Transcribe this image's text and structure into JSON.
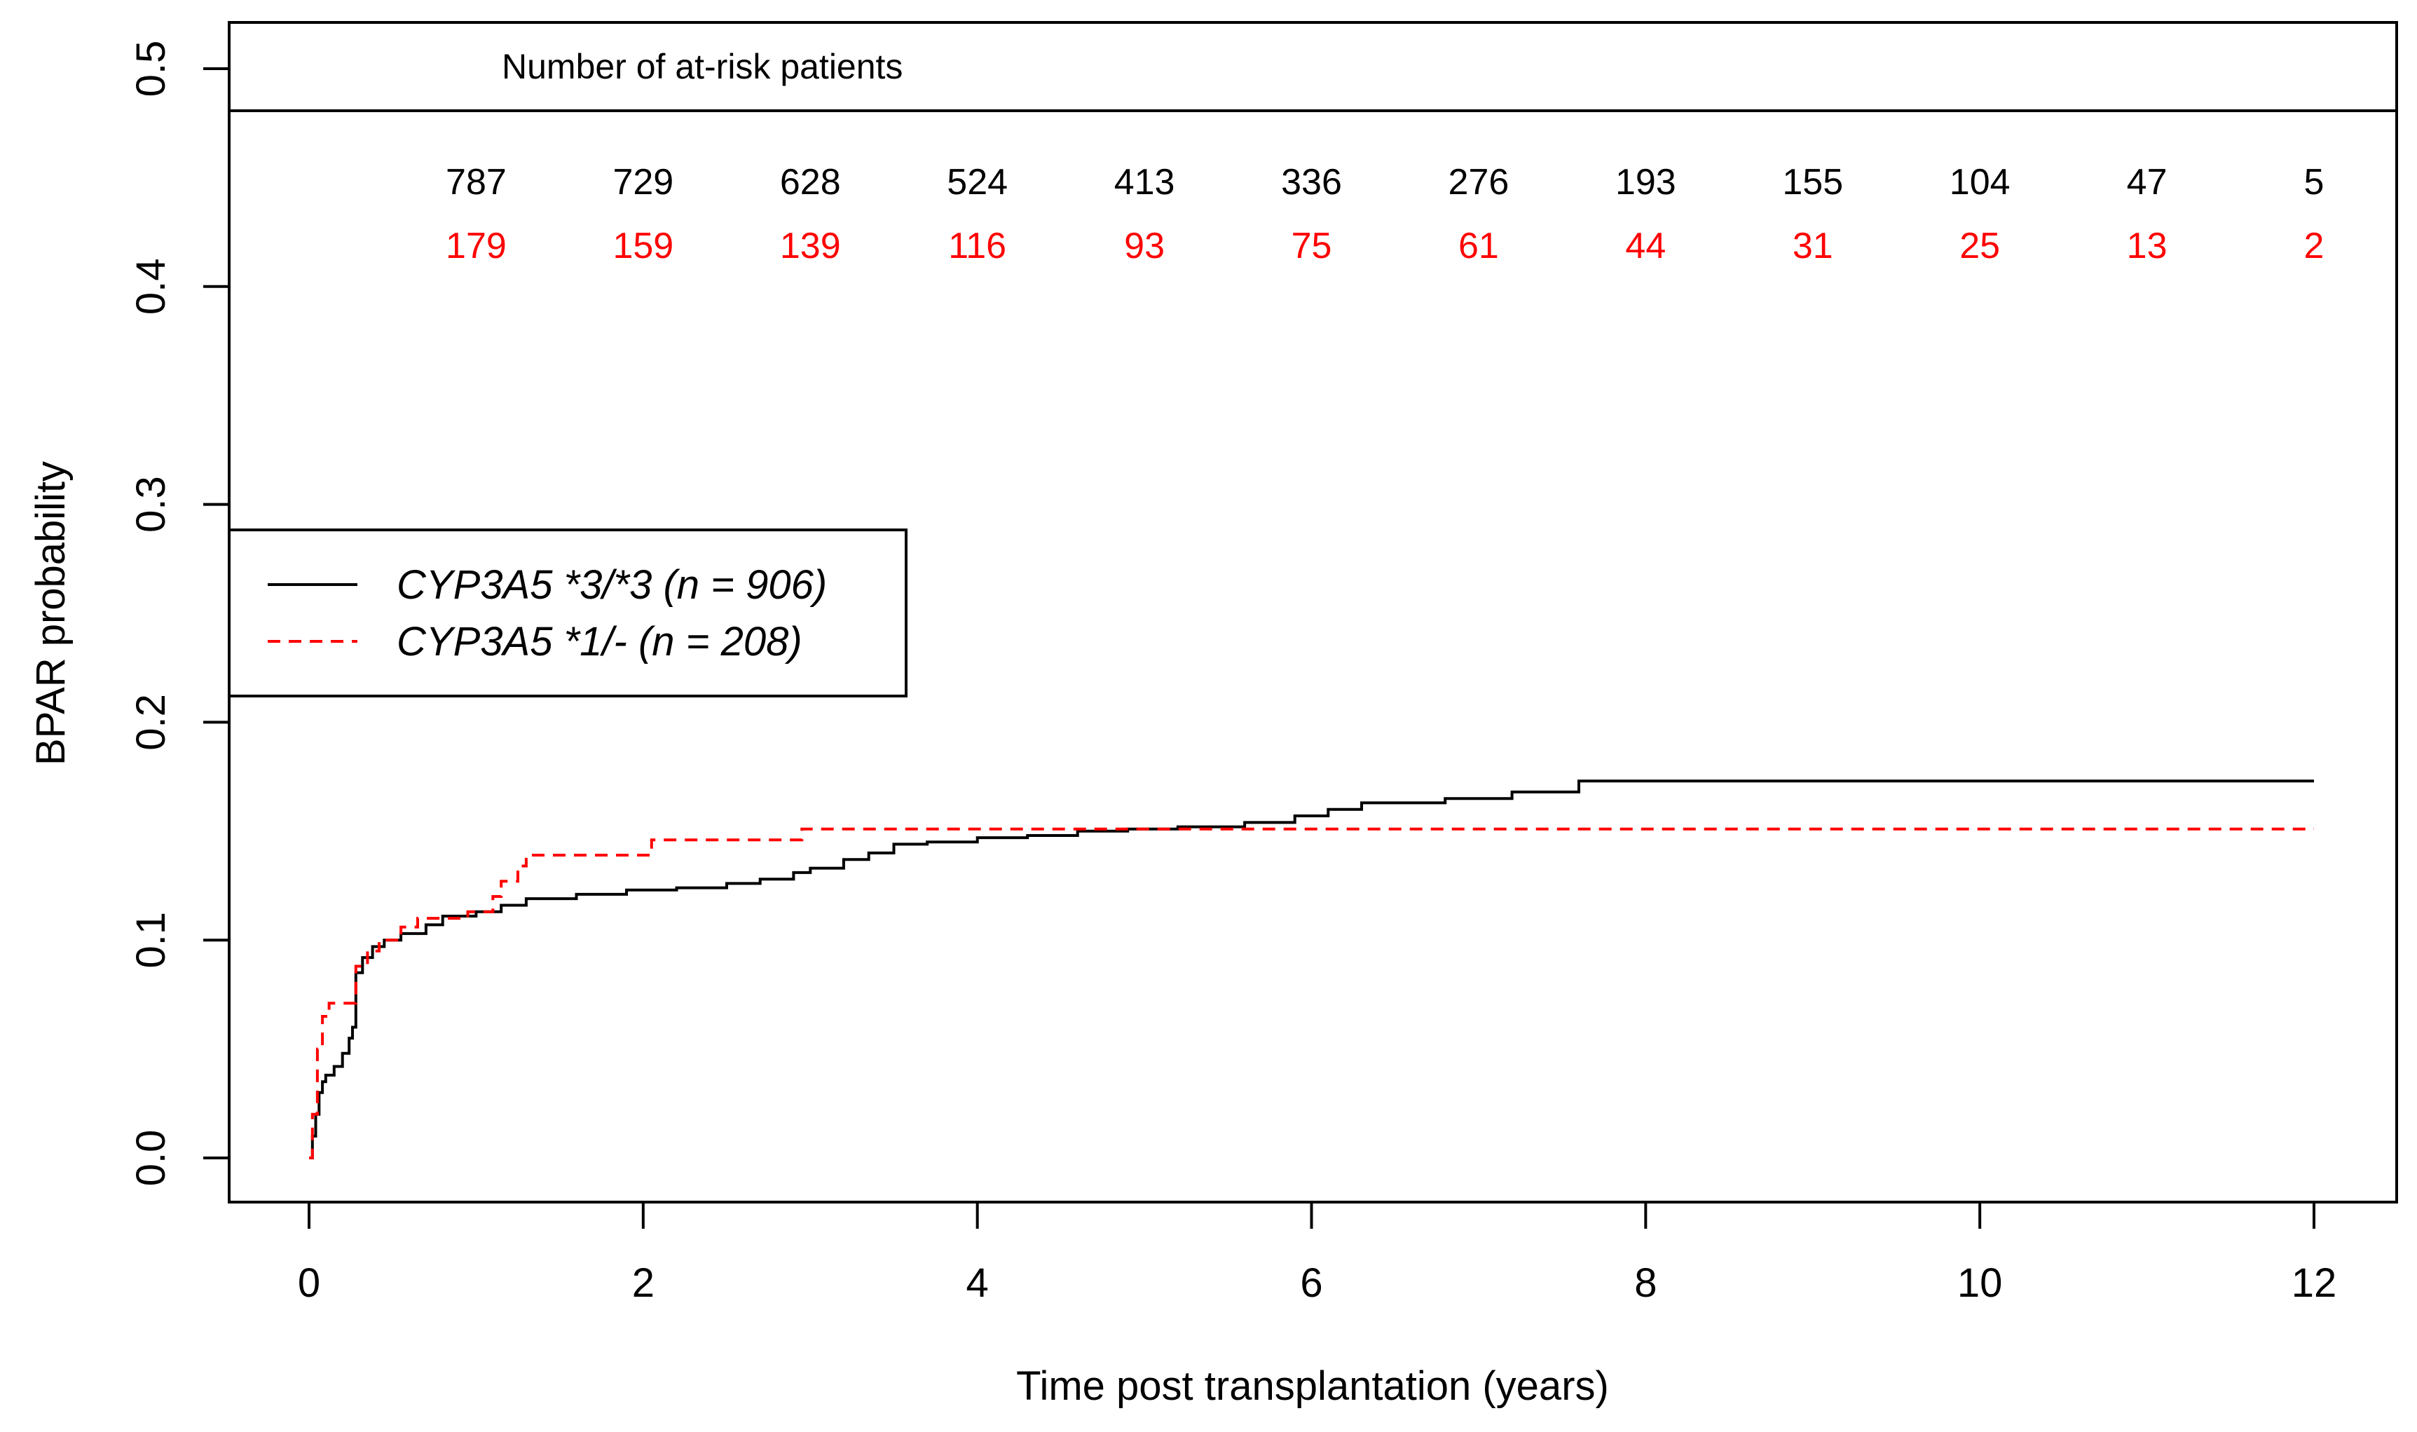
{
  "chart_data": {
    "type": "line",
    "xlabel": "Time post transplantation (years)",
    "ylabel": "BPAR probability",
    "xlim": [
      0,
      12
    ],
    "ylim": [
      0,
      0.5
    ],
    "x_ticks": [
      0,
      2,
      4,
      6,
      8,
      10,
      12
    ],
    "y_ticks": [
      0.0,
      0.1,
      0.2,
      0.3,
      0.4,
      0.5
    ],
    "x_tick_labels": [
      "0",
      "2",
      "4",
      "6",
      "8",
      "10",
      "12"
    ],
    "y_tick_labels": [
      "0.0",
      "0.1",
      "0.2",
      "0.3",
      "0.4",
      "0.5"
    ],
    "grid": false,
    "legend_position": "left",
    "series": [
      {
        "name": "CYP3A5 *3/*3 (n = 906)",
        "color": "#000000",
        "dash": "solid",
        "points": [
          [
            0,
            0
          ],
          [
            0.02,
            0.01
          ],
          [
            0.04,
            0.02
          ],
          [
            0.06,
            0.03
          ],
          [
            0.08,
            0.035
          ],
          [
            0.1,
            0.038
          ],
          [
            0.15,
            0.042
          ],
          [
            0.2,
            0.048
          ],
          [
            0.24,
            0.055
          ],
          [
            0.26,
            0.06
          ],
          [
            0.28,
            0.085
          ],
          [
            0.32,
            0.092
          ],
          [
            0.38,
            0.097
          ],
          [
            0.45,
            0.1
          ],
          [
            0.55,
            0.103
          ],
          [
            0.7,
            0.107
          ],
          [
            0.8,
            0.111
          ],
          [
            1.0,
            0.113
          ],
          [
            1.15,
            0.116
          ],
          [
            1.3,
            0.119
          ],
          [
            1.6,
            0.121
          ],
          [
            1.9,
            0.123
          ],
          [
            2.2,
            0.124
          ],
          [
            2.5,
            0.126
          ],
          [
            2.7,
            0.128
          ],
          [
            2.9,
            0.131
          ],
          [
            3.0,
            0.133
          ],
          [
            3.2,
            0.137
          ],
          [
            3.35,
            0.14
          ],
          [
            3.5,
            0.144
          ],
          [
            3.7,
            0.145
          ],
          [
            4.0,
            0.147
          ],
          [
            4.3,
            0.148
          ],
          [
            4.6,
            0.15
          ],
          [
            4.9,
            0.151
          ],
          [
            5.2,
            0.152
          ],
          [
            5.6,
            0.154
          ],
          [
            5.9,
            0.157
          ],
          [
            6.1,
            0.16
          ],
          [
            6.3,
            0.163
          ],
          [
            6.8,
            0.165
          ],
          [
            7.2,
            0.168
          ],
          [
            7.6,
            0.173
          ],
          [
            8.0,
            0.173
          ],
          [
            9.0,
            0.173
          ],
          [
            10.0,
            0.173
          ],
          [
            12.0,
            0.173
          ]
        ]
      },
      {
        "name": "CYP3A5 *1/- (n = 208)",
        "color": "#ff0000",
        "dash": "dashed",
        "points": [
          [
            0,
            0
          ],
          [
            0.02,
            0.02
          ],
          [
            0.05,
            0.05
          ],
          [
            0.08,
            0.065
          ],
          [
            0.12,
            0.071
          ],
          [
            0.26,
            0.071
          ],
          [
            0.28,
            0.088
          ],
          [
            0.35,
            0.095
          ],
          [
            0.42,
            0.1
          ],
          [
            0.55,
            0.106
          ],
          [
            0.65,
            0.11
          ],
          [
            0.95,
            0.113
          ],
          [
            1.1,
            0.12
          ],
          [
            1.15,
            0.127
          ],
          [
            1.25,
            0.134
          ],
          [
            1.3,
            0.139
          ],
          [
            1.8,
            0.139
          ],
          [
            2.05,
            0.146
          ],
          [
            2.9,
            0.146
          ],
          [
            2.95,
            0.151
          ],
          [
            5.0,
            0.151
          ],
          [
            12.0,
            0.151
          ]
        ]
      }
    ],
    "at_risk": {
      "title": "Number of at-risk patients",
      "times": [
        1,
        2,
        3,
        4,
        5,
        6,
        7,
        8,
        9,
        10,
        11,
        12
      ],
      "rows": [
        {
          "color": "#000000",
          "values": [
            "787",
            "729",
            "628",
            "524",
            "413",
            "336",
            "276",
            "193",
            "155",
            "104",
            "47",
            "5"
          ]
        },
        {
          "color": "#ff0000",
          "values": [
            "179",
            "159",
            "139",
            "116",
            "93",
            "75",
            "61",
            "44",
            "31",
            "25",
            "13",
            "2"
          ]
        }
      ]
    }
  }
}
